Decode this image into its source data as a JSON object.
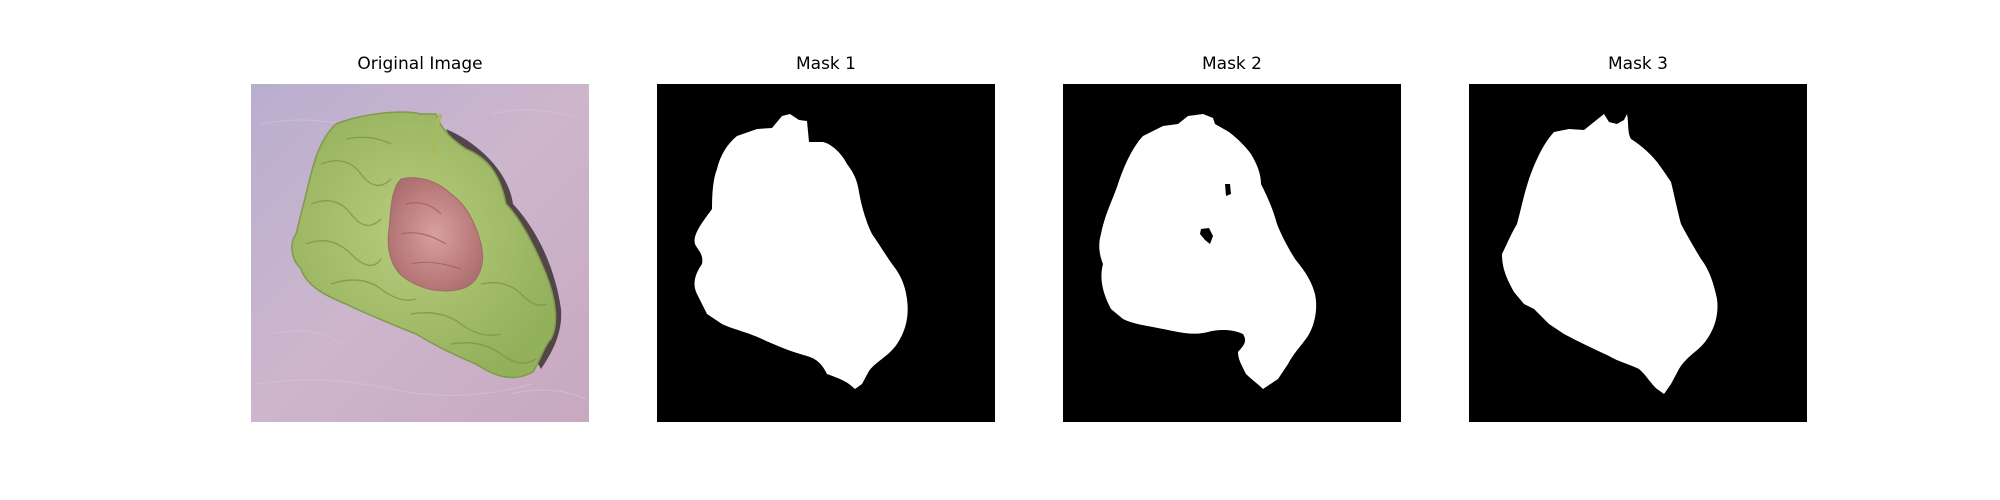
{
  "figure": {
    "panels": [
      {
        "title": "Original Image"
      },
      {
        "title": "Mask 1"
      },
      {
        "title": "Mask 2"
      },
      {
        "title": "Mask 3"
      }
    ]
  },
  "colors": {
    "background": "#c9b3c9",
    "leaf": "#a6bf6b",
    "leaf_dark": "#7f9a4a",
    "leaf_red": "#c98a8a",
    "shadow": "#3b3030",
    "mask_foreground": "#ffffff",
    "mask_background": "#000000"
  }
}
